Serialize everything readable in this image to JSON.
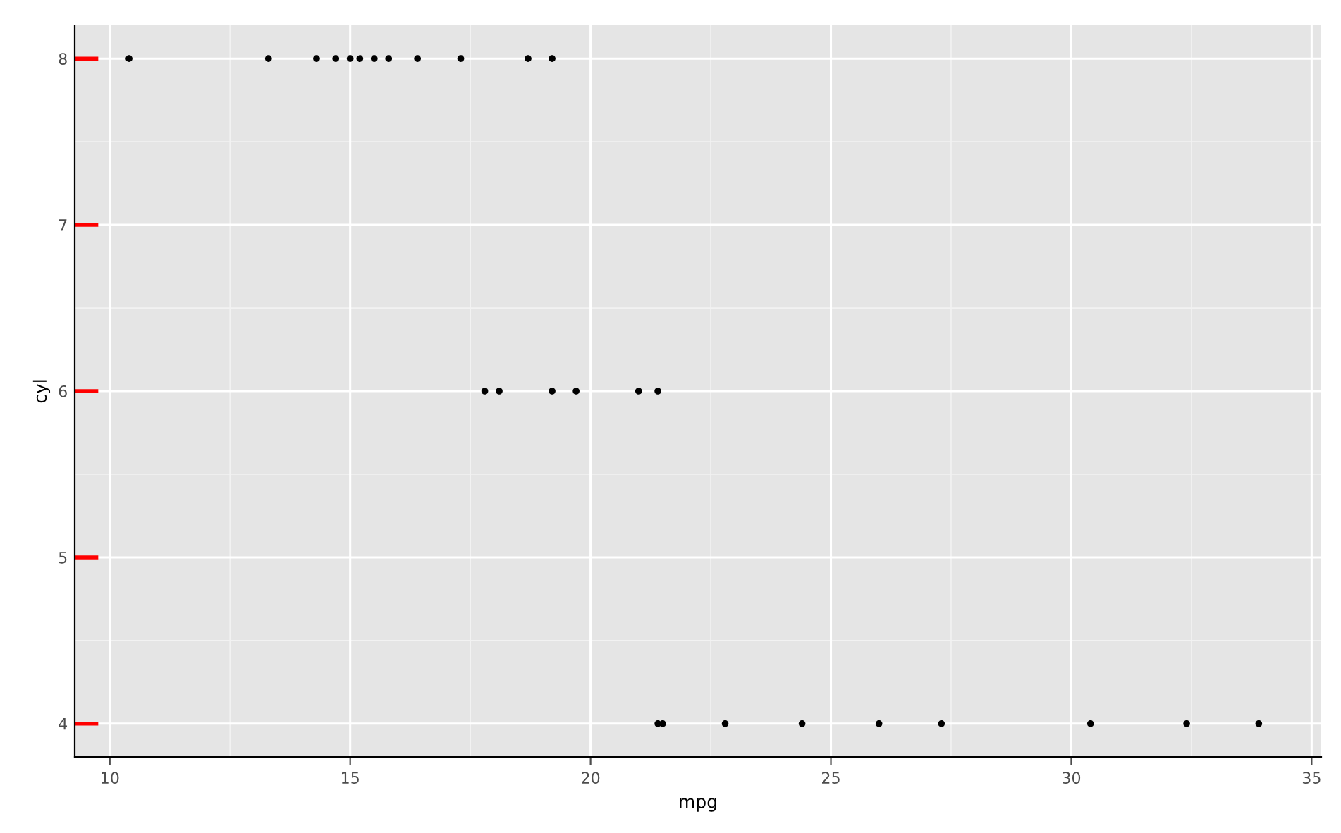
{
  "chart_data": {
    "type": "scatter",
    "xlabel": "mpg",
    "ylabel": "cyl",
    "x": [
      10.4,
      13.3,
      14.3,
      14.7,
      15.0,
      15.2,
      15.5,
      15.8,
      16.4,
      17.3,
      18.7,
      19.2,
      17.8,
      18.1,
      19.2,
      19.7,
      21.0,
      21.4,
      21.4,
      21.5,
      22.8,
      24.4,
      26.0,
      27.3,
      30.4,
      32.4,
      33.9
    ],
    "series": [
      {
        "color": "#000000",
        "values": [
          8,
          8,
          8,
          8,
          8,
          8,
          8,
          8,
          8,
          8,
          8,
          8,
          6,
          6,
          6,
          6,
          6,
          6,
          4,
          4,
          4,
          4,
          4,
          4,
          4,
          4,
          4
        ]
      }
    ],
    "xlim": [
      9.27,
      35.2
    ],
    "ylim": [
      3.8,
      8.2
    ],
    "xticks": [
      10,
      15,
      20,
      25,
      30,
      35
    ],
    "yticks": [
      4,
      5,
      6,
      7,
      8
    ],
    "grid": true,
    "marker": "circle",
    "legend": false
  }
}
